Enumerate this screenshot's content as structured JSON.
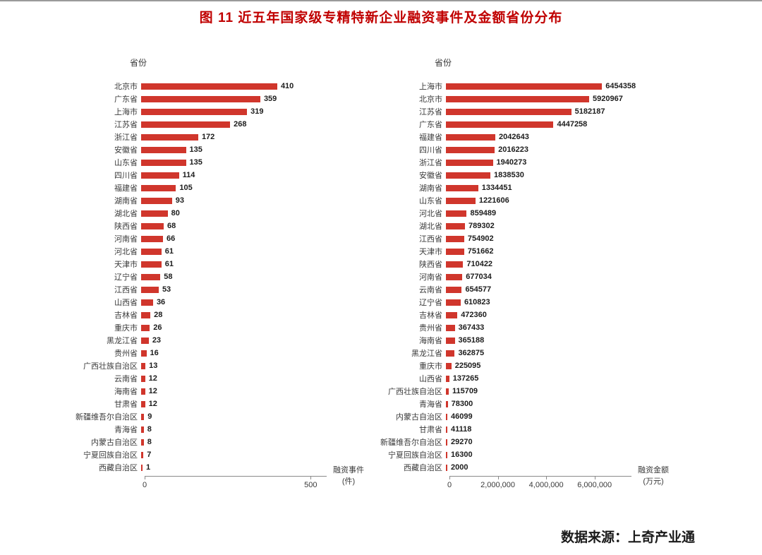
{
  "page": {
    "title": "图 11  近五年国家级专精特新企业融资事件及金额省份分布",
    "source": "数据来源：上奇产业通"
  },
  "colors": {
    "bar": "#d0362c",
    "title": "#c00000"
  },
  "chart_data": [
    {
      "type": "bar",
      "orientation": "horizontal",
      "ylabel": "省份",
      "xlabel_lines": [
        "融资事件",
        "(件)"
      ],
      "xlim": [
        0,
        510
      ],
      "xticks": [
        {
          "value": 0,
          "label": "0"
        },
        {
          "value": 500,
          "label": "500"
        }
      ],
      "categories": [
        "北京市",
        "广东省",
        "上海市",
        "江苏省",
        "浙江省",
        "安徽省",
        "山东省",
        "四川省",
        "福建省",
        "湖南省",
        "湖北省",
        "陕西省",
        "河南省",
        "河北省",
        "天津市",
        "辽宁省",
        "江西省",
        "山西省",
        "吉林省",
        "重庆市",
        "黑龙江省",
        "贵州省",
        "广西壮族自治区",
        "云南省",
        "海南省",
        "甘肃省",
        "新疆维吾尔自治区",
        "青海省",
        "内蒙古自治区",
        "宁夏回族自治区",
        "西藏自治区"
      ],
      "values": [
        410,
        359,
        319,
        268,
        172,
        135,
        135,
        114,
        105,
        93,
        80,
        68,
        66,
        61,
        61,
        58,
        53,
        36,
        28,
        26,
        23,
        16,
        13,
        12,
        12,
        12,
        9,
        8,
        8,
        7,
        1
      ]
    },
    {
      "type": "bar",
      "orientation": "horizontal",
      "ylabel": "省份",
      "xlabel_lines": [
        "融资金额",
        "(万元)"
      ],
      "xlim": [
        0,
        7000000
      ],
      "xticks": [
        {
          "value": 0,
          "label": "0"
        },
        {
          "value": 2000000,
          "label": "2,000,000"
        },
        {
          "value": 4000000,
          "label": "4,000,000"
        },
        {
          "value": 6000000,
          "label": "6,000,000"
        }
      ],
      "categories": [
        "上海市",
        "北京市",
        "江苏省",
        "广东省",
        "福建省",
        "四川省",
        "浙江省",
        "安徽省",
        "湖南省",
        "山东省",
        "河北省",
        "湖北省",
        "江西省",
        "天津市",
        "陕西省",
        "河南省",
        "云南省",
        "辽宁省",
        "吉林省",
        "贵州省",
        "海南省",
        "黑龙江省",
        "重庆市",
        "山西省",
        "广西壮族自治区",
        "青海省",
        "内蒙古自治区",
        "甘肃省",
        "新疆维吾尔自治区",
        "宁夏回族自治区",
        "西藏自治区"
      ],
      "values": [
        6454358,
        5920967,
        5182187,
        4447258,
        2042643,
        2016223,
        1940273,
        1838530,
        1334451,
        1221606,
        859489,
        789302,
        754902,
        751662,
        710422,
        677034,
        654577,
        610823,
        472360,
        367433,
        365188,
        362875,
        225095,
        137265,
        115709,
        78300,
        46099,
        41118,
        29270,
        16300,
        2000
      ]
    }
  ]
}
